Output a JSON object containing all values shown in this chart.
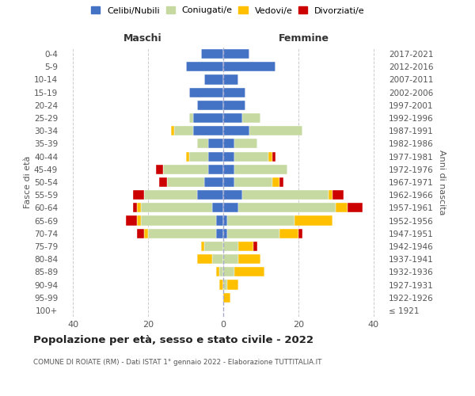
{
  "age_groups": [
    "100+",
    "95-99",
    "90-94",
    "85-89",
    "80-84",
    "75-79",
    "70-74",
    "65-69",
    "60-64",
    "55-59",
    "50-54",
    "45-49",
    "40-44",
    "35-39",
    "30-34",
    "25-29",
    "20-24",
    "15-19",
    "10-14",
    "5-9",
    "0-4"
  ],
  "birth_years": [
    "≤ 1921",
    "1922-1926",
    "1927-1931",
    "1932-1936",
    "1937-1941",
    "1942-1946",
    "1947-1951",
    "1952-1956",
    "1957-1961",
    "1962-1966",
    "1967-1971",
    "1972-1976",
    "1977-1981",
    "1982-1986",
    "1987-1991",
    "1992-1996",
    "1997-2001",
    "2002-2006",
    "2007-2011",
    "2012-2016",
    "2017-2021"
  ],
  "maschi": {
    "celibi": [
      0,
      0,
      0,
      0,
      0,
      0,
      2,
      2,
      3,
      7,
      5,
      4,
      4,
      4,
      8,
      8,
      7,
      9,
      5,
      10,
      6
    ],
    "coniugati": [
      0,
      0,
      0,
      1,
      3,
      5,
      18,
      20,
      19,
      14,
      10,
      12,
      5,
      3,
      5,
      1,
      0,
      0,
      0,
      0,
      0
    ],
    "vedovi": [
      0,
      0,
      1,
      1,
      4,
      1,
      1,
      1,
      1,
      0,
      0,
      0,
      1,
      0,
      1,
      0,
      0,
      0,
      0,
      0,
      0
    ],
    "divorziati": [
      0,
      0,
      0,
      0,
      0,
      0,
      2,
      3,
      1,
      3,
      2,
      2,
      0,
      0,
      0,
      0,
      0,
      0,
      0,
      0,
      0
    ]
  },
  "femmine": {
    "nubili": [
      0,
      0,
      0,
      0,
      0,
      0,
      1,
      1,
      4,
      5,
      3,
      3,
      3,
      3,
      7,
      5,
      6,
      6,
      4,
      14,
      7
    ],
    "coniugate": [
      0,
      0,
      1,
      3,
      4,
      4,
      14,
      18,
      26,
      23,
      10,
      14,
      9,
      6,
      14,
      5,
      0,
      0,
      0,
      0,
      0
    ],
    "vedove": [
      0,
      2,
      3,
      8,
      6,
      4,
      5,
      10,
      3,
      1,
      2,
      0,
      1,
      0,
      0,
      0,
      0,
      0,
      0,
      0,
      0
    ],
    "divorziate": [
      0,
      0,
      0,
      0,
      0,
      1,
      1,
      0,
      4,
      3,
      1,
      0,
      1,
      0,
      0,
      0,
      0,
      0,
      0,
      0,
      0
    ]
  },
  "color_celibi": "#4472c4",
  "color_coniugati": "#c5d9a0",
  "color_vedovi": "#ffc000",
  "color_divorziati": "#cc0000",
  "xlim": 43,
  "title": "Popolazione per età, sesso e stato civile - 2022",
  "subtitle": "COMUNE DI ROIATE (RM) - Dati ISTAT 1° gennaio 2022 - Elaborazione TUTTITALIA.IT",
  "ylabel_left": "Fasce di età",
  "ylabel_right": "Anni di nascita",
  "xlabel_maschi": "Maschi",
  "xlabel_femmine": "Femmine",
  "bg_color": "#ffffff",
  "grid_color": "#cccccc"
}
